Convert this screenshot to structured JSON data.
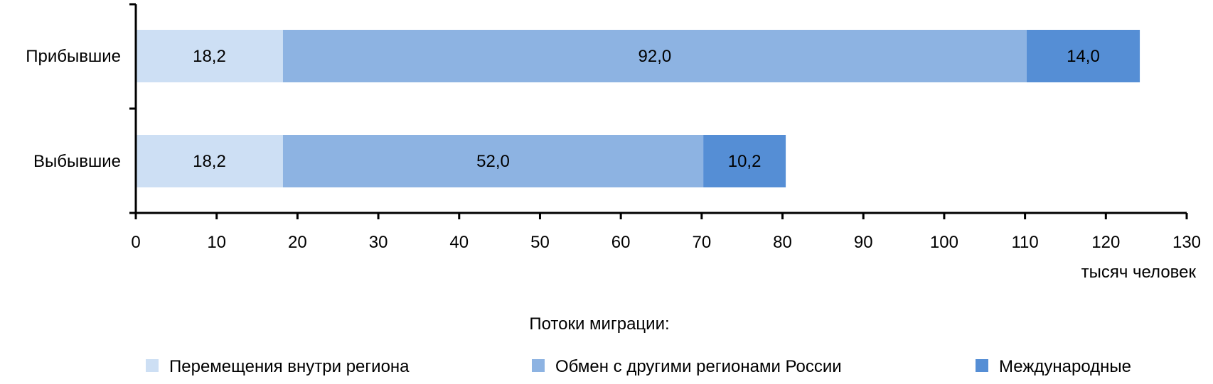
{
  "chart_data": {
    "type": "bar",
    "orientation": "horizontal",
    "stacked": true,
    "categories": [
      "Прибывшие",
      "Выбывшие"
    ],
    "series": [
      {
        "name": "Перемещения внутри региона",
        "values": [
          18.2,
          18.2
        ],
        "labels": [
          "18,2",
          "18,2"
        ],
        "color": "#cddff4"
      },
      {
        "name": "Обмен с другими регионами России",
        "values": [
          92.0,
          52.0
        ],
        "labels": [
          "92,0",
          "52,0"
        ],
        "color": "#8db3e2"
      },
      {
        "name": "Международные",
        "values": [
          14.0,
          10.2
        ],
        "labels": [
          "14,0",
          "10,2"
        ],
        "color": "#558ed5"
      }
    ],
    "xlim": [
      0,
      130
    ],
    "xticks": [
      0,
      10,
      20,
      30,
      40,
      50,
      60,
      70,
      80,
      90,
      100,
      110,
      120,
      130
    ],
    "xunit": "тысяч человек",
    "legend_title": "Потоки миграции:",
    "legend_position": "bottom",
    "grid": false
  }
}
